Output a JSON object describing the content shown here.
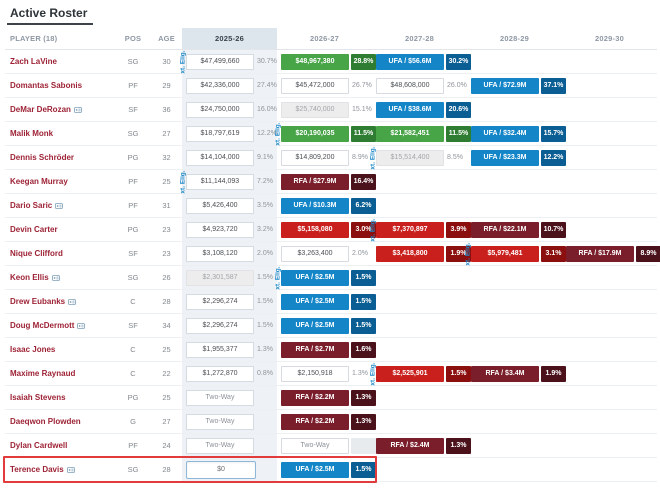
{
  "title": "Active Roster",
  "columns": [
    "PLAYER (18)",
    "POS",
    "AGE",
    "2025-26",
    "2026-27",
    "2027-28",
    "2028-29",
    "2029-30"
  ],
  "ext_label": "xt. Elig.",
  "colors": {
    "player_link": "#9d2235",
    "option_green": "#47a447",
    "option_green_dark": "#2e7d32",
    "ufa_blue": "#1486c8",
    "ufa_blue_dark": "#0b5e93",
    "team_red": "#c9201d",
    "team_red_dark": "#8c0f0f",
    "rfa_maroon": "#7a1e2b",
    "rfa_maroon_dark": "#4c121c",
    "highlight_border": "#e23b3b",
    "ext_label_blue": "#1e88c9",
    "column_highlight_bg": "#eef2f6"
  },
  "rows": [
    {
      "name": "Zach LaVine",
      "icon": false,
      "pos": "SG",
      "age": "30",
      "cells": [
        {
          "type": "plain",
          "text": "$47,499,660",
          "pct": "30.7%",
          "ext": true
        },
        {
          "type": "green",
          "text": "$48,967,380",
          "pct": "28.8%"
        },
        {
          "type": "ufa",
          "text": "UFA / $56.6M",
          "pct": "30.2%"
        },
        null,
        null
      ]
    },
    {
      "name": "Domantas Sabonis",
      "icon": false,
      "pos": "PF",
      "age": "29",
      "cells": [
        {
          "type": "plain",
          "text": "$42,336,000",
          "pct": "27.4%"
        },
        {
          "type": "plain",
          "text": "$45,472,000",
          "pct": "26.7%"
        },
        {
          "type": "plain",
          "text": "$48,608,000",
          "pct": "26.0%"
        },
        {
          "type": "ufa",
          "text": "UFA / $72.9M",
          "pct": "37.1%"
        },
        null
      ]
    },
    {
      "name": "DeMar DeRozan",
      "icon": true,
      "pos": "SF",
      "age": "36",
      "cells": [
        {
          "type": "plain",
          "text": "$24,750,000",
          "pct": "16.0%"
        },
        {
          "type": "muted",
          "text": "$25,740,000",
          "pct": "15.1%"
        },
        {
          "type": "ufa",
          "text": "UFA / $38.6M",
          "pct": "20.6%"
        },
        null,
        null
      ]
    },
    {
      "name": "Malik Monk",
      "icon": false,
      "pos": "SG",
      "age": "27",
      "cells": [
        {
          "type": "plain",
          "text": "$18,797,619",
          "pct": "12.2%"
        },
        {
          "type": "green",
          "text": "$20,190,035",
          "pct": "11.5%",
          "ext": true
        },
        {
          "type": "green",
          "text": "$21,582,451",
          "pct": "11.5%"
        },
        {
          "type": "ufa",
          "text": "UFA / $32.4M",
          "pct": "15.7%"
        },
        null
      ]
    },
    {
      "name": "Dennis Schröder",
      "icon": false,
      "pos": "PG",
      "age": "32",
      "cells": [
        {
          "type": "plain",
          "text": "$14,104,000",
          "pct": "9.1%"
        },
        {
          "type": "plain",
          "text": "$14,809,200",
          "pct": "8.9%"
        },
        {
          "type": "muted",
          "text": "$15,514,400",
          "pct": "8.5%",
          "ext": true
        },
        {
          "type": "ufa",
          "text": "UFA / $23.3M",
          "pct": "12.2%"
        },
        null
      ]
    },
    {
      "name": "Keegan Murray",
      "icon": false,
      "pos": "PF",
      "age": "25",
      "cells": [
        {
          "type": "plain",
          "text": "$11,144,093",
          "pct": "7.2%",
          "ext": true
        },
        {
          "type": "rfa",
          "text": "RFA / $27.9M",
          "pct": "16.4%"
        },
        null,
        null,
        null
      ]
    },
    {
      "name": "Dario Saric",
      "icon": true,
      "pos": "PF",
      "age": "31",
      "cells": [
        {
          "type": "plain",
          "text": "$5,426,400",
          "pct": "3.5%"
        },
        {
          "type": "ufa",
          "text": "UFA / $10.3M",
          "pct": "6.2%"
        },
        null,
        null,
        null
      ]
    },
    {
      "name": "Devin Carter",
      "icon": false,
      "pos": "PG",
      "age": "23",
      "cells": [
        {
          "type": "plain",
          "text": "$4,923,720",
          "pct": "3.2%"
        },
        {
          "type": "red",
          "text": "$5,158,080",
          "pct": "3.0%"
        },
        {
          "type": "red",
          "text": "$7,370,897",
          "pct": "3.9%",
          "ext": true
        },
        {
          "type": "rfa",
          "text": "RFA / $22.1M",
          "pct": "10.7%"
        },
        null
      ]
    },
    {
      "name": "Nique Clifford",
      "icon": false,
      "pos": "SF",
      "age": "23",
      "cells": [
        {
          "type": "plain",
          "text": "$3,108,120",
          "pct": "2.0%"
        },
        {
          "type": "plain",
          "text": "$3,263,400",
          "pct": "2.0%"
        },
        {
          "type": "red",
          "text": "$3,418,800",
          "pct": "1.9%"
        },
        {
          "type": "red",
          "text": "$5,979,481",
          "pct": "3.1%",
          "ext": true
        },
        {
          "type": "rfa",
          "text": "RFA / $17.9M",
          "pct": "8.9%"
        }
      ]
    },
    {
      "name": "Keon Ellis",
      "icon": true,
      "pos": "SG",
      "age": "26",
      "cells": [
        {
          "type": "muted",
          "text": "$2,301,587",
          "pct": "1.5%"
        },
        {
          "type": "ufa",
          "text": "UFA / $2.5M",
          "pct": "1.5%",
          "ext": true
        },
        null,
        null,
        null
      ]
    },
    {
      "name": "Drew Eubanks",
      "icon": true,
      "pos": "C",
      "age": "28",
      "cells": [
        {
          "type": "plain",
          "text": "$2,296,274",
          "pct": "1.5%"
        },
        {
          "type": "ufa",
          "text": "UFA / $2.5M",
          "pct": "1.5%"
        },
        null,
        null,
        null
      ]
    },
    {
      "name": "Doug McDermott",
      "icon": true,
      "pos": "SF",
      "age": "34",
      "cells": [
        {
          "type": "plain",
          "text": "$2,296,274",
          "pct": "1.5%"
        },
        {
          "type": "ufa",
          "text": "UFA / $2.5M",
          "pct": "1.5%"
        },
        null,
        null,
        null
      ]
    },
    {
      "name": "Isaac Jones",
      "icon": false,
      "pos": "C",
      "age": "25",
      "cells": [
        {
          "type": "plain",
          "text": "$1,955,377",
          "pct": "1.3%"
        },
        {
          "type": "rfa",
          "text": "RFA / $2.7M",
          "pct": "1.6%"
        },
        null,
        null,
        null
      ]
    },
    {
      "name": "Maxime Raynaud",
      "icon": false,
      "pos": "C",
      "age": "22",
      "cells": [
        {
          "type": "plain",
          "text": "$1,272,870",
          "pct": "0.8%"
        },
        {
          "type": "plain",
          "text": "$2,150,918",
          "pct": "1.3%"
        },
        {
          "type": "red",
          "text": "$2,525,901",
          "pct": "1.5%",
          "ext": true
        },
        {
          "type": "rfa",
          "text": "RFA / $3.4M",
          "pct": "1.9%"
        },
        null
      ]
    },
    {
      "name": "Isaiah Stevens",
      "icon": false,
      "pos": "PG",
      "age": "25",
      "cells": [
        {
          "type": "twoway",
          "text": "Two-Way"
        },
        {
          "type": "rfa",
          "text": "RFA / $2.2M",
          "pct": "1.3%"
        },
        null,
        null,
        null
      ]
    },
    {
      "name": "Daeqwon Plowden",
      "icon": false,
      "pos": "G",
      "age": "27",
      "cells": [
        {
          "type": "twoway",
          "text": "Two-Way"
        },
        {
          "type": "rfa",
          "text": "RFA / $2.2M",
          "pct": "1.3%"
        },
        null,
        null,
        null
      ]
    },
    {
      "name": "Dylan Cardwell",
      "icon": false,
      "pos": "PF",
      "age": "24",
      "cells": [
        {
          "type": "twoway",
          "text": "Two-Way"
        },
        {
          "type": "twoway",
          "text": "Two-Way",
          "pct_empty": true
        },
        {
          "type": "rfa",
          "text": "RFA / $2.4M",
          "pct": "1.3%"
        },
        null,
        null
      ]
    },
    {
      "name": "Terence Davis",
      "icon": true,
      "pos": "SG",
      "age": "28",
      "highlight": true,
      "cells": [
        {
          "type": "input",
          "text": "$0"
        },
        {
          "type": "ufa",
          "text": "UFA / $2.5M",
          "pct": "1.5%"
        },
        null,
        null,
        null
      ]
    }
  ]
}
